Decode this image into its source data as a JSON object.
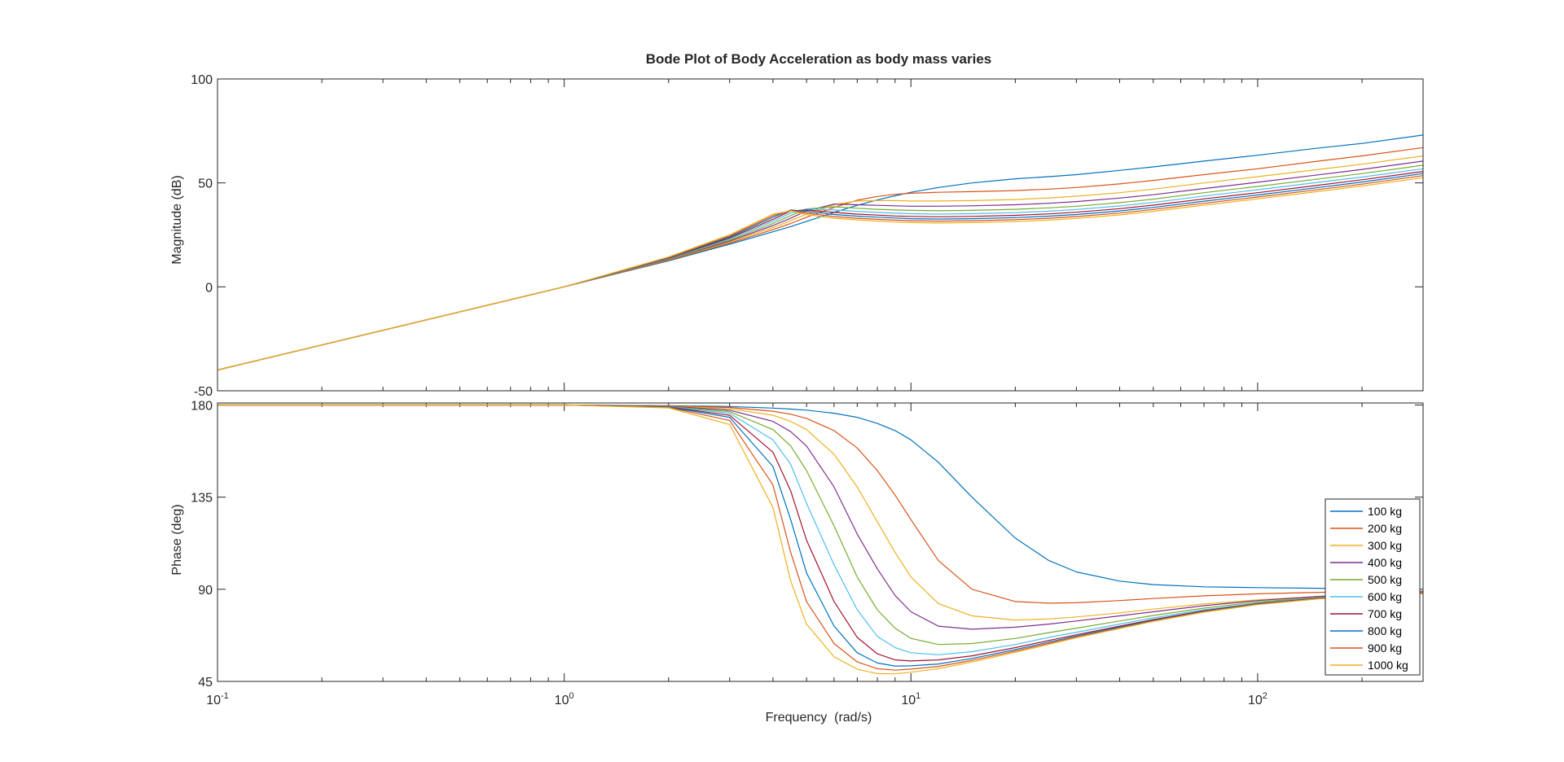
{
  "chart_data": {
    "type": "line",
    "title": "Bode Plot of Body Acceleration as body mass varies",
    "xlabel": "Frequency  (rad/s)",
    "x_scale": "log",
    "xlim": [
      0.1,
      300
    ],
    "x_ticks": [
      {
        "value": 0.1,
        "base": "10",
        "exp": "-1"
      },
      {
        "value": 1,
        "base": "10",
        "exp": "0"
      },
      {
        "value": 10,
        "base": "10",
        "exp": "1"
      },
      {
        "value": 100,
        "base": "10",
        "exp": "2"
      }
    ],
    "legend_position": "east, lower half of phase plot",
    "colors": [
      "#0072BD",
      "#D95319",
      "#EDB120",
      "#7E2F8E",
      "#77AC30",
      "#4DBEEE",
      "#A2142F",
      "#0072BD",
      "#D95319",
      "#EDB120"
    ],
    "frequencies": [
      0.1,
      1,
      2,
      3,
      4,
      4.5,
      5,
      6,
      7,
      8,
      9,
      10,
      12,
      15,
      20,
      25,
      30,
      40,
      50,
      70,
      100,
      150,
      200,
      300
    ],
    "subplots": [
      {
        "name": "magnitude",
        "ylabel": "Magnitude (dB)",
        "ylim": [
          -50,
          100
        ],
        "y_ticks": [
          "100",
          "50",
          "0",
          "-50"
        ],
        "y_tick_values": [
          100,
          50,
          0,
          -50
        ],
        "series": [
          {
            "name": "100 kg",
            "values": [
              -40,
              0,
              12.5,
              20.5,
              26.5,
              29,
              31.5,
              35.8,
              39.2,
              41.8,
              43.8,
              45.5,
              47.8,
              50,
              52,
              53,
              54,
              56,
              57.7,
              60.5,
              63.3,
              66.8,
              69,
              73
            ]
          },
          {
            "name": "200 kg",
            "values": [
              -40,
              0,
              12.8,
              21,
              27.5,
              30.5,
              33.5,
              38.2,
              41.7,
              43.5,
              44.5,
              45,
              45.5,
              45.8,
              46.3,
              47,
              47.8,
              49.5,
              51.2,
              54,
              56.8,
              60.5,
              63,
              67
            ]
          },
          {
            "name": "300 kg",
            "values": [
              -40,
              0,
              13,
              21.5,
              28.5,
              31.8,
              35,
              39.5,
              41.3,
              41.5,
              41.5,
              41.3,
              41.3,
              41.5,
              42,
              42.8,
              43.6,
              45.3,
              47,
              50,
              53,
              56.5,
              59,
              63
            ]
          },
          {
            "name": "400 kg",
            "values": [
              -40,
              0,
              13.2,
              22,
              29.5,
              33,
              36.5,
              39.8,
              39.5,
              39.2,
              39,
              38.8,
              38.8,
              39,
              39.5,
              40.2,
              41,
              42.7,
              44.3,
              47.3,
              50.3,
              53.9,
              56.5,
              60.5
            ]
          },
          {
            "name": "500 kg",
            "values": [
              -40,
              0,
              13.4,
              22.5,
              30.5,
              34.3,
              37.5,
              38.5,
              37.8,
              37.3,
              37,
              36.8,
              36.6,
              36.8,
              37.3,
              38,
              38.8,
              40.5,
              42.2,
              45.3,
              48.3,
              51.9,
              54.5,
              58.5
            ]
          },
          {
            "name": "600 kg",
            "values": [
              -40,
              0,
              13.6,
              23,
              31.5,
              35.5,
              37.5,
              37,
              36.3,
              35.8,
              35.4,
              35.2,
              35,
              35.2,
              35.7,
              36.4,
              37.2,
              38.9,
              40.6,
              43.7,
              46.7,
              50.3,
              52.8,
              56.8
            ]
          },
          {
            "name": "700 kg",
            "values": [
              -40,
              0,
              13.8,
              23.5,
              32.5,
              36.5,
              37,
              35.8,
              35,
              34.5,
              34.1,
              33.9,
              33.7,
              33.9,
              34.4,
              35.1,
              35.9,
              37.6,
              39.3,
              42.3,
              45.3,
              48.9,
              51.5,
              55.5
            ]
          },
          {
            "name": "800 kg",
            "values": [
              -40,
              0,
              14,
              24,
              33.5,
              37,
              36.3,
              34.8,
              34,
              33.5,
              33.1,
              32.8,
              32.6,
              32.8,
              33.3,
              34,
              34.8,
              36.5,
              38.2,
              41.2,
              44.2,
              47.8,
              50.4,
              54.5
            ]
          },
          {
            "name": "900 kg",
            "values": [
              -40,
              0,
              14.2,
              24.5,
              34.3,
              36.8,
              35.5,
              33.8,
              33,
              32.5,
              32.1,
              31.8,
              31.6,
              31.8,
              32.3,
              33,
              33.8,
              35.5,
              37.2,
              40.2,
              43.2,
              46.8,
              49.4,
              53.5
            ]
          },
          {
            "name": "1000 kg",
            "values": [
              -40,
              0,
              14.4,
              25,
              35,
              36.5,
              34.8,
              33,
              32.2,
              31.6,
              31.2,
              30.9,
              30.7,
              30.9,
              31.4,
              32.1,
              32.9,
              34.6,
              36.3,
              39.3,
              42.3,
              45.9,
              48.5,
              52.5
            ]
          }
        ]
      },
      {
        "name": "phase",
        "ylabel": "Phase (deg)",
        "ylim": [
          45,
          181
        ],
        "y_ticks": [
          "180",
          "135",
          "90",
          "45"
        ],
        "y_tick_values": [
          180,
          135,
          90,
          45
        ],
        "series": [
          {
            "name": "100 kg",
            "values": [
              180,
              180,
              179.7,
              179.3,
              178.5,
              178,
              177.5,
              176,
              174,
              171,
              167.5,
              163,
              152,
              135,
              115,
              104,
              98.5,
              94,
              92.3,
              91.2,
              90.8,
              90.5,
              90.3,
              90
            ]
          },
          {
            "name": "200 kg",
            "values": [
              180,
              180,
              179.6,
              178.8,
              177,
              175.5,
              173.5,
              167.5,
              159,
              148,
              136,
              124,
              104,
              90,
              84,
              83.2,
              83.4,
              84.5,
              85.5,
              86.8,
              87.8,
              88.5,
              88.8,
              89
            ]
          },
          {
            "name": "300 kg",
            "values": [
              180,
              180,
              179.5,
              178.2,
              175,
              172,
              168,
              156,
              140,
              123,
              108,
              96,
              83,
              77,
              75,
              75.5,
              76.5,
              78.5,
              80.3,
              82.8,
              84.8,
              86.5,
              87.5,
              88.5
            ]
          },
          {
            "name": "400 kg",
            "values": [
              180,
              180,
              179.4,
              177.5,
              172,
              167,
              160,
              140,
              117,
              100,
              87,
              79,
              72,
              70.5,
              71.5,
              73,
              74.5,
              77,
              79,
              82,
              84.5,
              86.5,
              87.5,
              88.5
            ]
          },
          {
            "name": "500 kg",
            "values": [
              180,
              180,
              179.3,
              176.8,
              168,
              160,
              148,
              121,
              96,
              80,
              71,
              66,
              63,
              63.5,
              66,
              68.8,
              71,
              74.5,
              77.2,
              80.8,
              83.8,
              86,
              87.2,
              88.3
            ]
          },
          {
            "name": "600 kg",
            "values": [
              180,
              180,
              179.2,
              176,
              163,
              151,
              132,
              102,
              80,
              67,
              61.5,
              59,
              58,
              59.5,
              63,
              66.5,
              69,
              73,
              76,
              80,
              83.2,
              85.8,
              87,
              88.2
            ]
          },
          {
            "name": "700 kg",
            "values": [
              180,
              180,
              179.1,
              175,
              157,
              138,
              114,
              84,
              66.5,
              58.5,
              55.5,
              55,
              55.5,
              57.5,
              61.5,
              65,
              67.8,
              72,
              75.2,
              79.5,
              83,
              85.6,
              86.9,
              88.1
            ]
          },
          {
            "name": "800 kg",
            "values": [
              180,
              180,
              179,
              174,
              150,
              124,
              98,
              72,
              59,
              54,
              52.5,
              52.6,
              53.5,
              56.2,
              60.5,
              64.2,
              67.2,
              71.5,
              74.8,
              79.2,
              82.8,
              85.5,
              86.8,
              88
            ]
          },
          {
            "name": "900 kg",
            "values": [
              180,
              180,
              178.8,
              172.5,
              141,
              108,
              84,
              63.5,
              54.5,
              51.2,
              50.5,
              51,
              52.3,
              55.3,
              59.8,
              63.6,
              66.7,
              71.1,
              74.5,
              79,
              82.6,
              85.4,
              86.7,
              88
            ]
          },
          {
            "name": "1000 kg",
            "values": [
              180,
              180,
              178.6,
              170.5,
              130,
              94,
              73,
              57,
              51,
              48.8,
              48.7,
              49.5,
              51.2,
              54.5,
              59.2,
              63.1,
              66.3,
              70.8,
              74.3,
              78.8,
              82.5,
              85.3,
              86.6,
              87.9
            ]
          }
        ]
      }
    ]
  }
}
